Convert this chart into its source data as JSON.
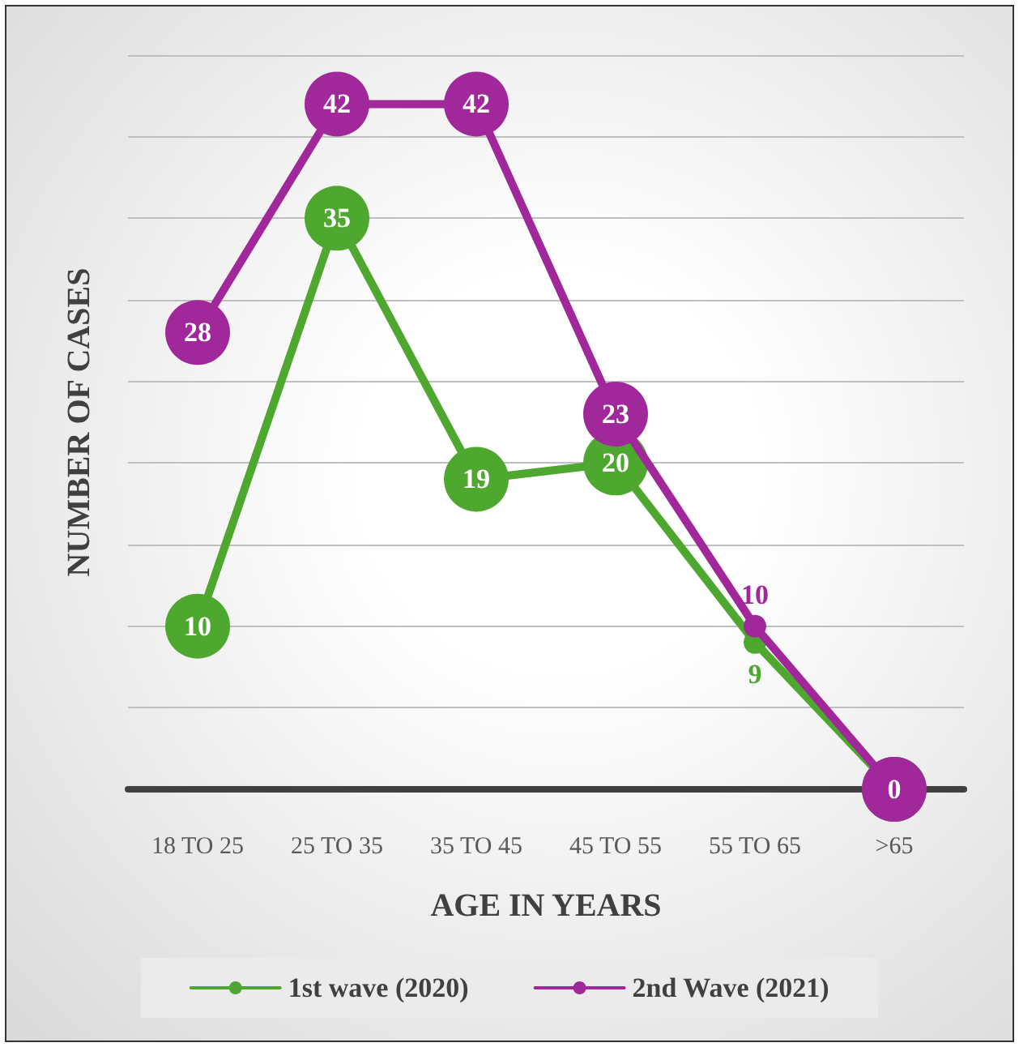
{
  "chart_data": {
    "type": "line",
    "xlabel": "AGE IN YEARS",
    "ylabel": "NUMBER OF CASES",
    "categories": [
      "18 TO 25",
      "25 TO 35",
      "35 TO 45",
      "45 TO 55",
      "55 TO 65",
      ">65"
    ],
    "series": [
      {
        "name": "1st wave (2020)",
        "color": "#4ea72e",
        "values": [
          10,
          35,
          19,
          20,
          9,
          0
        ],
        "value_labels": [
          "10",
          "35",
          "19",
          "20",
          "9",
          null
        ]
      },
      {
        "name": "2nd Wave (2021)",
        "color": "#a0289a",
        "values": [
          28,
          42,
          42,
          23,
          10,
          0
        ],
        "value_labels": [
          "28",
          "42",
          "42",
          "23",
          "10",
          "0"
        ]
      }
    ],
    "ylim": [
      0,
      45
    ],
    "yticks": [
      {
        "value": 0,
        "label": null
      },
      {
        "value": 5,
        "label": null
      },
      {
        "value": 10,
        "label": null
      },
      {
        "value": 15,
        "label": null
      },
      {
        "value": 20,
        "label": null
      },
      {
        "value": 25,
        "label": null
      },
      {
        "value": 30,
        "label": null
      },
      {
        "value": 35,
        "label": null
      },
      {
        "value": 40,
        "label": null
      },
      {
        "value": 45,
        "label": null
      }
    ],
    "tick_labels": "x",
    "grid": "y",
    "legend": "bottom",
    "marker": "circle",
    "line_style": "solid"
  }
}
